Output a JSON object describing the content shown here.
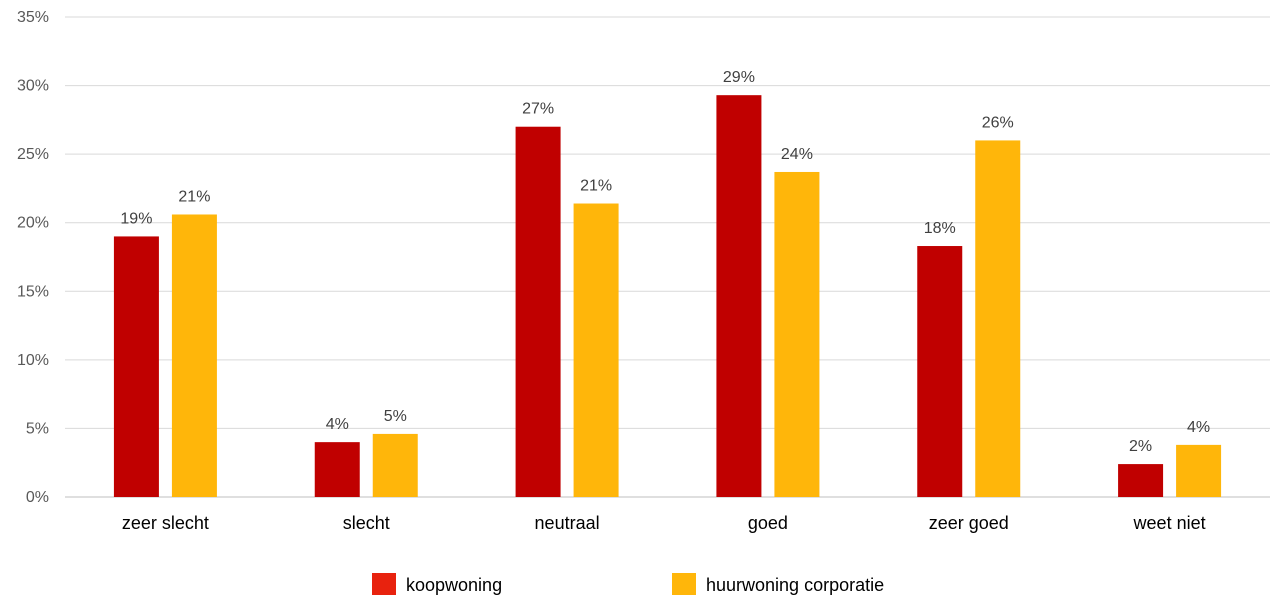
{
  "chart_data": {
    "type": "bar",
    "categories": [
      "zeer slecht",
      "slecht",
      "neutraal",
      "goed",
      "zeer goed",
      "weet niet"
    ],
    "series": [
      {
        "name": "koopwoning",
        "color": "#C00000",
        "legend_color": "#E8220E",
        "values": [
          19.0,
          4.0,
          27.0,
          29.3,
          18.3,
          2.4
        ],
        "labels": [
          "19%",
          "4%",
          "27%",
          "29%",
          "18%",
          "2%"
        ]
      },
      {
        "name": "huurwoning corporatie",
        "color": "#FFB60A",
        "legend_color": "#FFB60A",
        "values": [
          20.6,
          4.6,
          21.4,
          23.7,
          26.0,
          3.8
        ],
        "labels": [
          "21%",
          "5%",
          "21%",
          "24%",
          "26%",
          "4%"
        ]
      }
    ],
    "ylim": [
      0,
      35
    ],
    "yticks": [
      0,
      5,
      10,
      15,
      20,
      25,
      30,
      35
    ],
    "ytick_labels": [
      "0%",
      "5%",
      "10%",
      "15%",
      "20%",
      "25%",
      "30%",
      "35%"
    ],
    "title": "",
    "xlabel": "",
    "ylabel": "",
    "grid": true,
    "legend_position": "bottom"
  }
}
